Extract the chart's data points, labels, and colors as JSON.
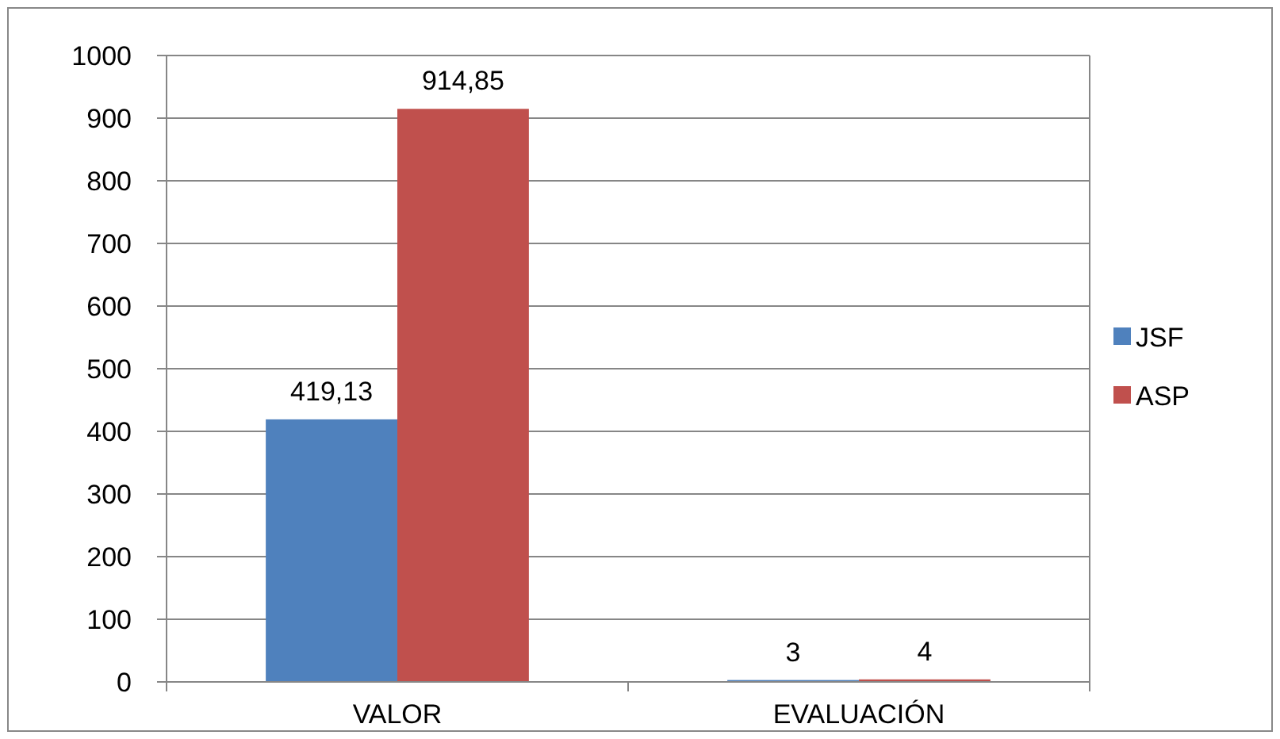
{
  "chart_data": {
    "type": "bar",
    "categories": [
      "VALOR",
      "EVALUACIÓN"
    ],
    "series": [
      {
        "name": "JSF",
        "color": "#4f81bd",
        "values": [
          419.13,
          3
        ],
        "value_labels": [
          "419,13",
          "3"
        ]
      },
      {
        "name": "ASP",
        "color": "#c0504d",
        "values": [
          914.85,
          4
        ],
        "value_labels": [
          "914,85",
          "4"
        ]
      }
    ],
    "ylim": [
      0,
      1000
    ],
    "yticks": [
      0,
      100,
      200,
      300,
      400,
      500,
      600,
      700,
      800,
      900,
      1000
    ],
    "grid": "y",
    "legend": "right"
  }
}
